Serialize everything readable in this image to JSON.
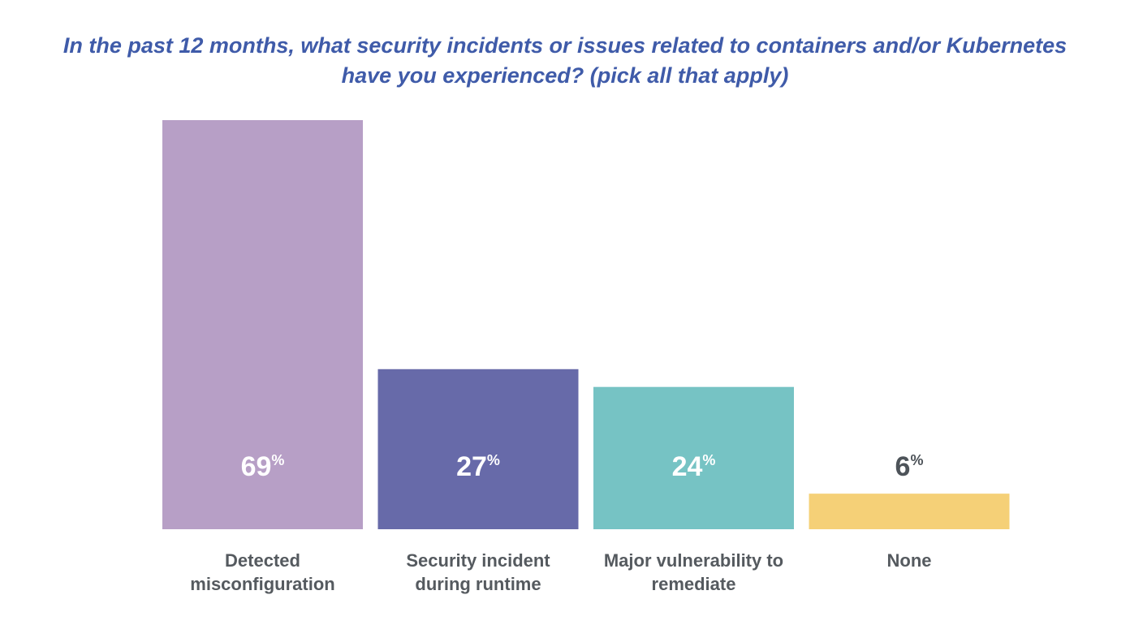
{
  "chart_data": {
    "type": "bar",
    "title": "In the past 12 months, what security incidents or issues related to containers and/or Kubernetes have you experienced? (pick all that apply)",
    "categories": [
      "Detected misconfiguration",
      "Security incident during runtime",
      "Major vulnerability to remediate",
      "None"
    ],
    "values": [
      69,
      27,
      24,
      6
    ],
    "value_labels": [
      "69%",
      "27%",
      "24%",
      "6%"
    ],
    "colors": [
      "#b79fc6",
      "#676aa9",
      "#76c3c4",
      "#f5d077"
    ]
  }
}
